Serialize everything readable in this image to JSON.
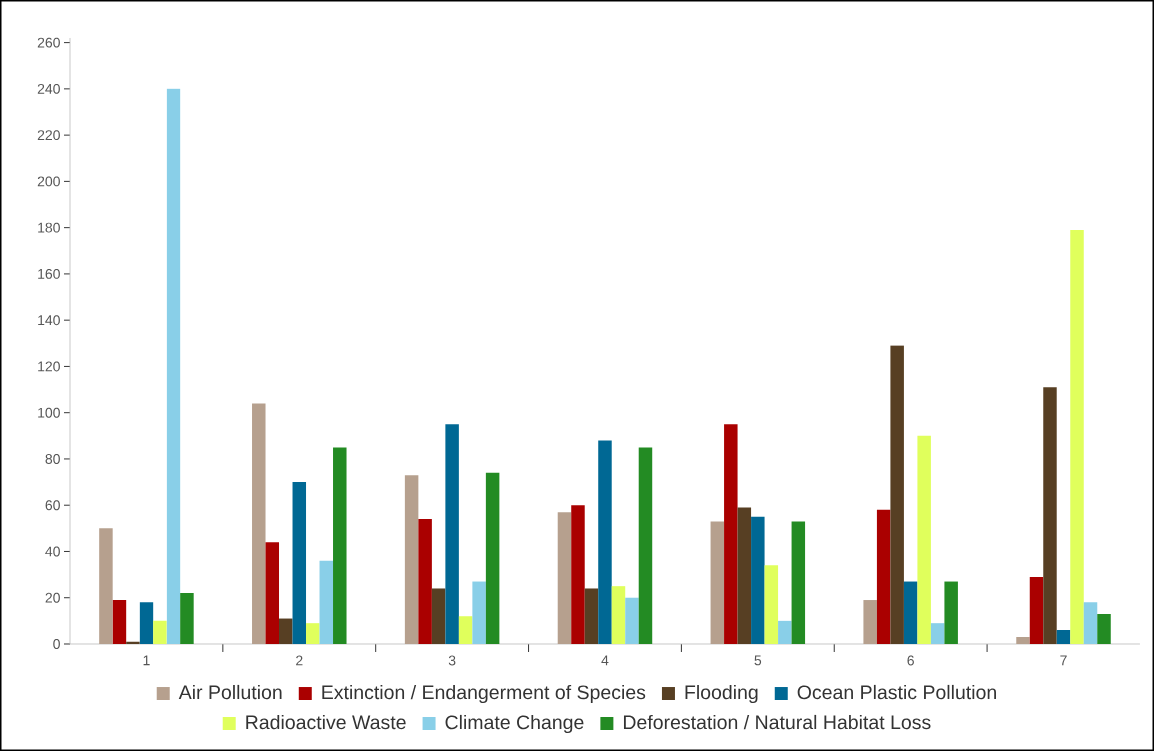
{
  "chart_data": {
    "type": "bar",
    "categories": [
      "1",
      "2",
      "3",
      "4",
      "5",
      "6",
      "7"
    ],
    "series": [
      {
        "name": "Air Pollution",
        "color": "#b6a08e",
        "values": [
          50,
          104,
          73,
          57,
          53,
          19,
          3
        ]
      },
      {
        "name": "Extinction / Endangerment of Species",
        "color": "#aa0000",
        "values": [
          19,
          44,
          54,
          60,
          95,
          58,
          29
        ]
      },
      {
        "name": "Flooding",
        "color": "#573f23",
        "values": [
          1,
          11,
          24,
          24,
          59,
          129,
          111
        ]
      },
      {
        "name": "Ocean Plastic Pollution",
        "color": "#006894",
        "values": [
          18,
          70,
          95,
          88,
          55,
          27,
          6
        ]
      },
      {
        "name": "Radioactive Waste",
        "color": "#e0ff5c",
        "values": [
          10,
          9,
          12,
          25,
          34,
          90,
          179
        ]
      },
      {
        "name": "Climate Change",
        "color": "#89cfe8",
        "values": [
          240,
          36,
          27,
          20,
          10,
          9,
          18
        ]
      },
      {
        "name": "Deforestation / Natural Habitat Loss",
        "color": "#238b23",
        "values": [
          22,
          85,
          74,
          85,
          53,
          27,
          13
        ]
      }
    ],
    "ylim": [
      0,
      262
    ],
    "yticks": [
      0,
      20,
      40,
      60,
      80,
      100,
      120,
      140,
      160,
      180,
      200,
      220,
      240,
      260
    ],
    "legend": "bottom"
  }
}
